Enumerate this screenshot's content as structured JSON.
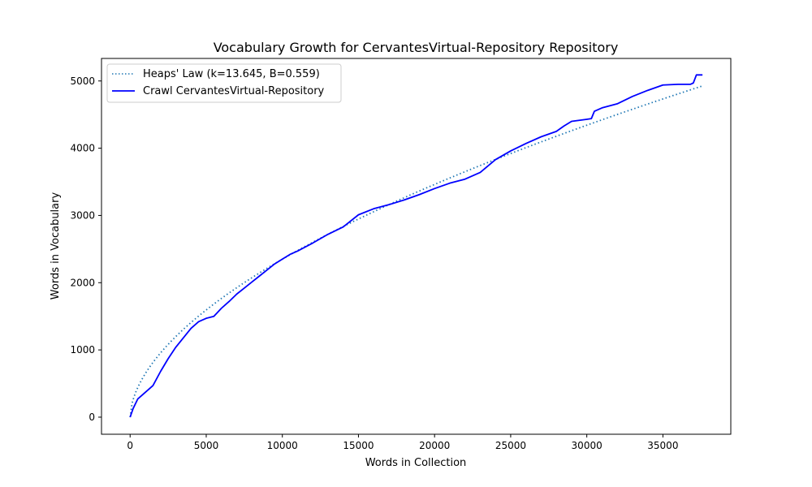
{
  "chart_data": {
    "type": "line",
    "title": "Vocabulary Growth for CervantesVirtual-Repository Repository",
    "xlabel": "Words in Collection",
    "ylabel": "Words in Vocabulary",
    "xlim": [
      -1880,
      39460
    ],
    "ylim": [
      -254,
      5335
    ],
    "xticks": [
      0,
      5000,
      10000,
      15000,
      20000,
      25000,
      30000,
      35000
    ],
    "xtick_labels": [
      "0",
      "5000",
      "10000",
      "15000",
      "20000",
      "25000",
      "30000",
      "35000"
    ],
    "yticks": [
      0,
      1000,
      2000,
      3000,
      4000,
      5000
    ],
    "ytick_labels": [
      "0",
      "1000",
      "2000",
      "3000",
      "4000",
      "5000"
    ],
    "grid": false,
    "legend_position": "upper-left",
    "series": [
      {
        "name": "Heaps' Law (k=13.645, B=0.559)",
        "style": "dotted",
        "color": "#1f77b4",
        "formula": {
          "k": 13.645,
          "B": 0.559,
          "x_max": 37600
        }
      },
      {
        "name": "Crawl CervantesVirtual-Repository",
        "style": "solid",
        "color": "#0000ff",
        "x": [
          0,
          200,
          500,
          1000,
          1500,
          2000,
          2500,
          3000,
          3500,
          4000,
          4500,
          5000,
          5500,
          6000,
          6500,
          7000,
          7500,
          8000,
          8500,
          9000,
          9500,
          10000,
          10500,
          11000,
          12000,
          13000,
          14000,
          15000,
          16000,
          17000,
          18000,
          19000,
          20000,
          21000,
          22000,
          23000,
          24000,
          25000,
          26000,
          27000,
          28000,
          28500,
          29000,
          30000,
          30300,
          30500,
          31000,
          32000,
          33000,
          34000,
          35000,
          36000,
          36800,
          37000,
          37200,
          37600
        ],
        "y": [
          0,
          130,
          270,
          370,
          470,
          680,
          870,
          1040,
          1180,
          1320,
          1420,
          1470,
          1500,
          1620,
          1720,
          1830,
          1920,
          2010,
          2100,
          2190,
          2280,
          2350,
          2420,
          2470,
          2590,
          2720,
          2830,
          3010,
          3100,
          3160,
          3230,
          3310,
          3400,
          3480,
          3540,
          3640,
          3830,
          3960,
          4070,
          4170,
          4250,
          4330,
          4400,
          4430,
          4440,
          4550,
          4600,
          4660,
          4770,
          4860,
          4940,
          4950,
          4950,
          4970,
          5090,
          5090
        ]
      }
    ]
  }
}
